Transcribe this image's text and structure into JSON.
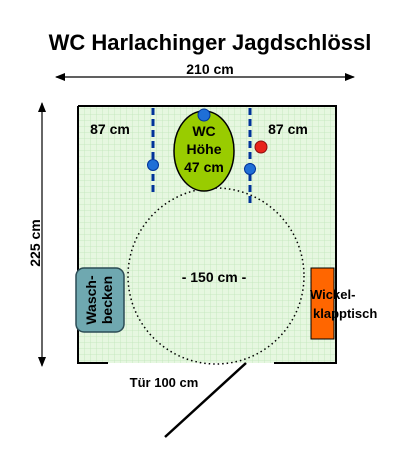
{
  "title": "WC Harlachinger Jagdschlössl",
  "dimensions": {
    "width": "210 cm",
    "height": "225 cm",
    "left_clearance": "87 cm",
    "right_clearance": "87 cm",
    "turning_circle": "- 150 cm -",
    "door": "Tür 100 cm"
  },
  "fixtures": {
    "toilet_line1": "WC",
    "toilet_line2": "Höhe",
    "toilet_line3": "47 cm",
    "washbasin_line1": "Wasch-",
    "washbasin_line2": "becken",
    "changing_table_line1": "Wickel-",
    "changing_table_line2": "klapptisch"
  },
  "colors": {
    "floor": "#e6f7e0",
    "floor_grid": "#bfe6b8",
    "toilet": "#99cc00",
    "washbasin": "#6fa8b0",
    "changing_table": "#ff6600",
    "grab_bar": "#003399",
    "knob": "#1f6fd6",
    "flush_button": "#e8241b"
  }
}
